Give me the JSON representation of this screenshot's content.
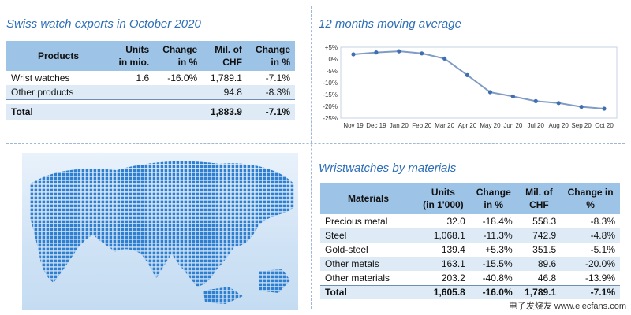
{
  "titles": {
    "exports": "Swiss watch exports in October 2020",
    "moving_avg": "12 months moving average",
    "materials": "Wristwatches by materials"
  },
  "exports_table": {
    "headers": [
      "Products",
      "Units in mio.",
      "Change in %",
      "Mil. of CHF",
      "Change in %"
    ],
    "headers_split": [
      [
        "Products",
        ""
      ],
      [
        "Units",
        "in mio."
      ],
      [
        "Change",
        "in %"
      ],
      [
        "Mil. of",
        "CHF"
      ],
      [
        "Change",
        "in %"
      ]
    ],
    "rows": [
      [
        "Wrist watches",
        "1.6",
        "-16.0%",
        "1,789.1",
        "-7.1%"
      ],
      [
        "Other products",
        "",
        "",
        "94.8",
        "-8.3%"
      ]
    ],
    "total": [
      "Total",
      "",
      "",
      "1,883.9",
      "-7.1%"
    ]
  },
  "materials_table": {
    "headers_split": [
      [
        "Materials",
        ""
      ],
      [
        "Units",
        "(in 1'000)"
      ],
      [
        "Change",
        "in %"
      ],
      [
        "Mil. of",
        "CHF"
      ],
      [
        "Change in",
        "%"
      ]
    ],
    "rows": [
      [
        "Precious metal",
        "32.0",
        "-18.4%",
        "558.3",
        "-8.3%"
      ],
      [
        "Steel",
        "1,068.1",
        "-11.3%",
        "742.9",
        "-4.8%"
      ],
      [
        "Gold-steel",
        "139.4",
        "+5.3%",
        "351.5",
        "-5.1%"
      ],
      [
        "Other metals",
        "163.1",
        "-15.5%",
        "89.6",
        "-20.0%"
      ],
      [
        "Other materials",
        "203.2",
        "-40.8%",
        "46.8",
        "-13.9%"
      ]
    ],
    "total": [
      "Total",
      "1,605.8",
      "-16.0%",
      "1,789.1",
      "-7.1%"
    ]
  },
  "chart_data": {
    "type": "line",
    "title": "12 months moving average",
    "categories": [
      "Nov 19",
      "Dec 19",
      "Jan 20",
      "Feb 20",
      "Mar 20",
      "Apr 20",
      "May 20",
      "Jun 20",
      "Jul 20",
      "Aug 20",
      "Sep 20",
      "Oct 20"
    ],
    "series": [
      {
        "values": [
          2.0,
          2.8,
          3.3,
          2.4,
          0.2,
          -6.8,
          -14.0,
          -15.8,
          -17.8,
          -18.6,
          -20.2,
          -21.0
        ]
      }
    ],
    "yticks": [
      5,
      0,
      -5,
      -10,
      -15,
      -20,
      -25
    ],
    "ytick_labels": [
      "+5%",
      "0%",
      "-5%",
      "-10%",
      "-15%",
      "-20%",
      "-25%"
    ],
    "ylim": [
      -25,
      5
    ],
    "xlabel": "",
    "ylabel": "",
    "grid": false,
    "color": "#7f9cc5",
    "marker_color": "#3f6fb0"
  },
  "watermark": "电子发烧友 www.elecfans.com"
}
